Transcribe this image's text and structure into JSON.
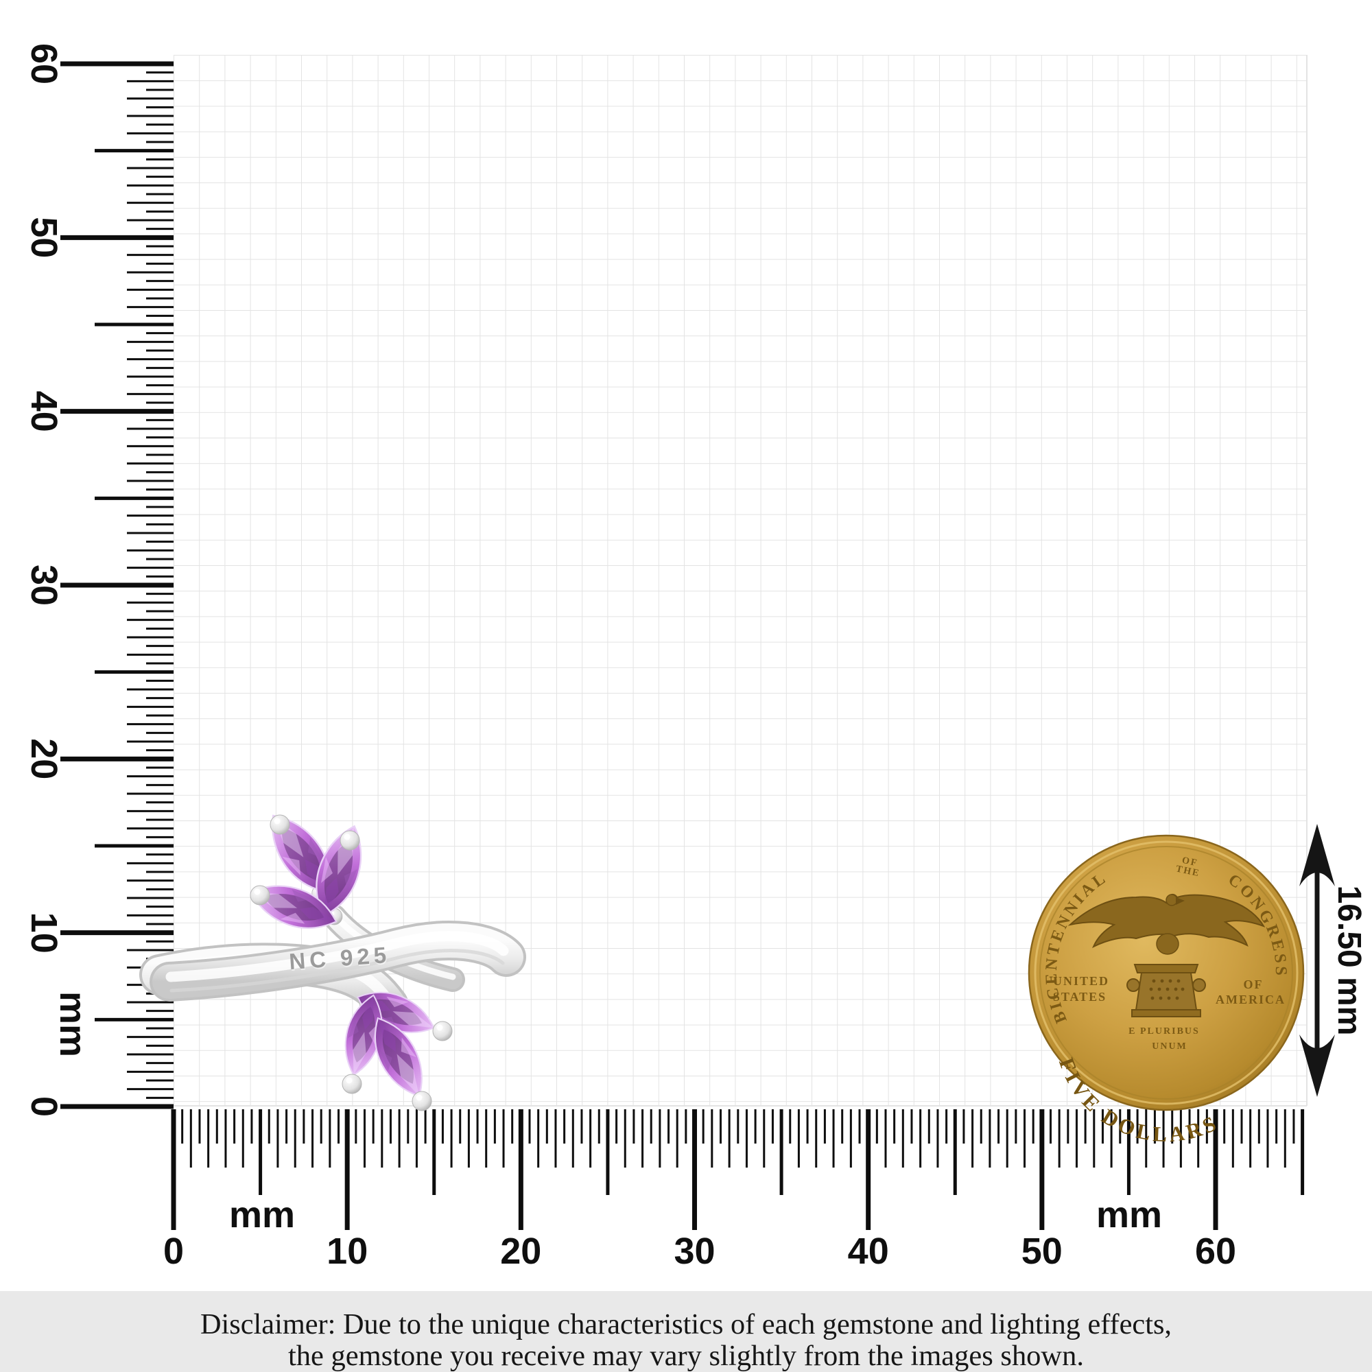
{
  "rulers": {
    "left": {
      "labels": [
        "60",
        "50",
        "40",
        "30",
        "20",
        "10",
        "0"
      ],
      "unit_label": "mm"
    },
    "bottom": {
      "labels": [
        "0",
        "10",
        "20",
        "30",
        "40",
        "50",
        "60"
      ],
      "unit_label_left": "mm",
      "unit_label_right": "mm"
    }
  },
  "ring": {
    "engraving": "NC 925"
  },
  "dimension_arrow": {
    "label": "16.50 mm"
  },
  "coin": {
    "arc_top_left": "BICENTENNIAL",
    "arc_top_center_line1": "OF",
    "arc_top_center_line2": "THE",
    "arc_top_right": "CONGRESS",
    "left_text_line1": "UNITED",
    "left_text_line2": "STATES",
    "right_text_line1": "OF",
    "right_text_line2": "AMERICA",
    "center_text_line1": "E PLURIBUS",
    "center_text_line2": "UNUM",
    "arc_bottom": "FIVE DOLLARS"
  },
  "disclaimer": {
    "line1": "Disclaimer: Due to the unique characteristics of each gemstone and lighting effects,",
    "line2": "the gemstone you receive may vary slightly from the images shown."
  },
  "colors": {
    "amethyst": "#b866d6",
    "amethyst_dark": "#5a2e6b",
    "silver": "#ececec",
    "gold": "#c89d3f",
    "grid_line": "#e3e3e3",
    "tick": "#0d0d0d",
    "disclaimer_bg": "#e9e9e9"
  }
}
